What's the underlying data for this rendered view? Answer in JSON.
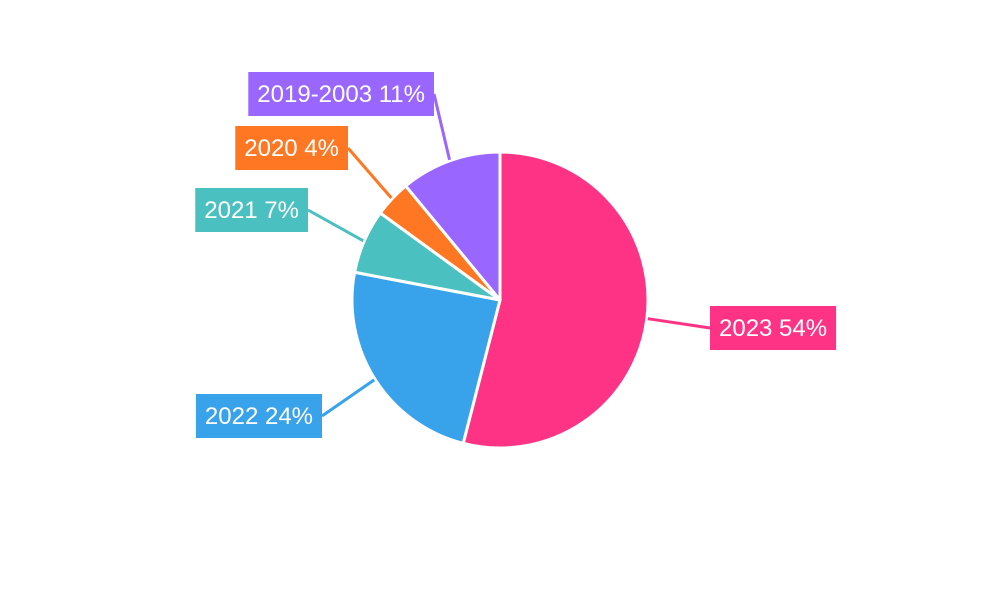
{
  "chart_data": {
    "type": "pie",
    "slices": [
      {
        "label": "2023",
        "value": 54,
        "percent_text": "54%",
        "color": "#ff3385"
      },
      {
        "label": "2022",
        "value": 24,
        "percent_text": "24%",
        "color": "#38a2eb"
      },
      {
        "label": "2021",
        "value": 7,
        "percent_text": "7%",
        "color": "#4bc0c0"
      },
      {
        "label": "2020",
        "value": 4,
        "percent_text": "4%",
        "color": "#ff7722"
      },
      {
        "label": "2019-2003",
        "value": 11,
        "percent_text": "11%",
        "color": "#9966ff"
      }
    ],
    "start_angle": "top",
    "direction": "clockwise",
    "legend": "none",
    "slice_border_color": "#ffffff"
  }
}
